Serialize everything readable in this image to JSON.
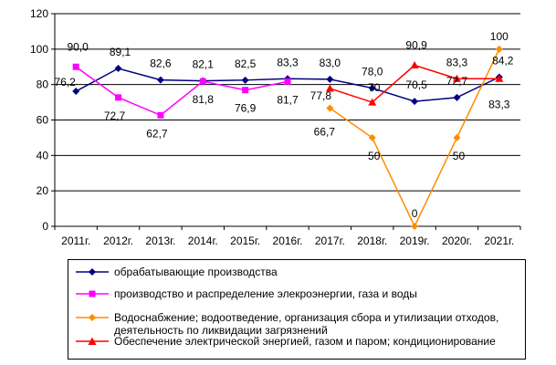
{
  "chart_data": {
    "type": "line",
    "categories": [
      "2011г.",
      "2012г.",
      "2013г.",
      "2014г.",
      "2015г.",
      "2016г.",
      "2017г.",
      "2018г.",
      "2019г.",
      "2020г.",
      "2021г."
    ],
    "ylim": [
      0,
      120
    ],
    "yticks": [
      "0",
      "20",
      "40",
      "60",
      "80",
      "100",
      "120"
    ],
    "grid": "horizontal",
    "legend_position": "bottom",
    "series": [
      {
        "name": "обрабатывающие производства",
        "color": "#000080",
        "marker": "diamond",
        "values": [
          76.2,
          89.1,
          82.6,
          82.1,
          82.5,
          83.3,
          83.0,
          78.0,
          70.5,
          72.7,
          84.2
        ],
        "labels": [
          "76,2",
          "89,1",
          "82,6",
          "82,1",
          "82,5",
          "83,3",
          "83,0",
          "78,0",
          "70,5",
          "72,7",
          "84,2"
        ]
      },
      {
        "name": "производство и распределение элекроэнергии, газа и воды",
        "color": "#ff00ff",
        "marker": "square",
        "values": [
          90.0,
          72.7,
          62.7,
          81.8,
          76.9,
          81.7,
          null,
          null,
          null,
          null,
          null
        ],
        "labels": [
          "90,0",
          "72,7",
          "62,7",
          "81,8",
          "76,9",
          "81,7",
          "",
          "",
          "",
          "",
          ""
        ]
      },
      {
        "name": "Водоснабжение; водоотведение, организация сбора и утилизации отходов, деятельность по ликвидации загрязнений",
        "color": "#ff8c00",
        "marker": "diamond",
        "values": [
          null,
          null,
          null,
          null,
          null,
          null,
          66.7,
          50,
          0,
          50,
          100
        ],
        "labels": [
          "",
          "",
          "",
          "",
          "",
          "",
          "66,7",
          "50",
          "0",
          "50",
          "100"
        ]
      },
      {
        "name": "Обеспечение электрической энергией, газом и паром; кондиционирование",
        "color": "#ff0000",
        "marker": "triangle",
        "values": [
          null,
          null,
          null,
          null,
          null,
          null,
          77.8,
          70,
          90.9,
          83.3,
          83.3
        ],
        "labels": [
          "",
          "",
          "",
          "",
          "",
          "",
          "77,8",
          "70",
          "90,9",
          "83,3",
          "83,3"
        ]
      }
    ]
  }
}
